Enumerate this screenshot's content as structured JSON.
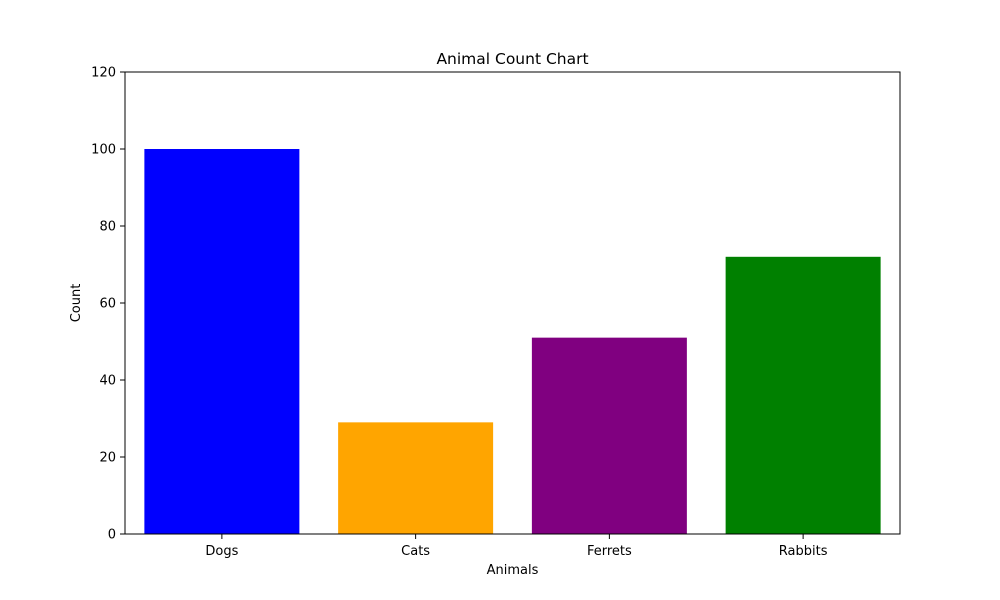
{
  "chart_data": {
    "type": "bar",
    "title": "Animal Count Chart",
    "xlabel": "Animals",
    "ylabel": "Count",
    "categories": [
      "Dogs",
      "Cats",
      "Ferrets",
      "Rabbits"
    ],
    "values": [
      100,
      29,
      51,
      72
    ],
    "colors": [
      "#0000ff",
      "#ffa500",
      "#800080",
      "#008000"
    ],
    "ylim": [
      0,
      120
    ],
    "yticks": [
      0,
      20,
      40,
      60,
      80,
      100,
      120
    ],
    "ytick_labels": [
      "0",
      "20",
      "40",
      "60",
      "80",
      "100",
      "120"
    ],
    "grid": false,
    "legend": "none"
  }
}
